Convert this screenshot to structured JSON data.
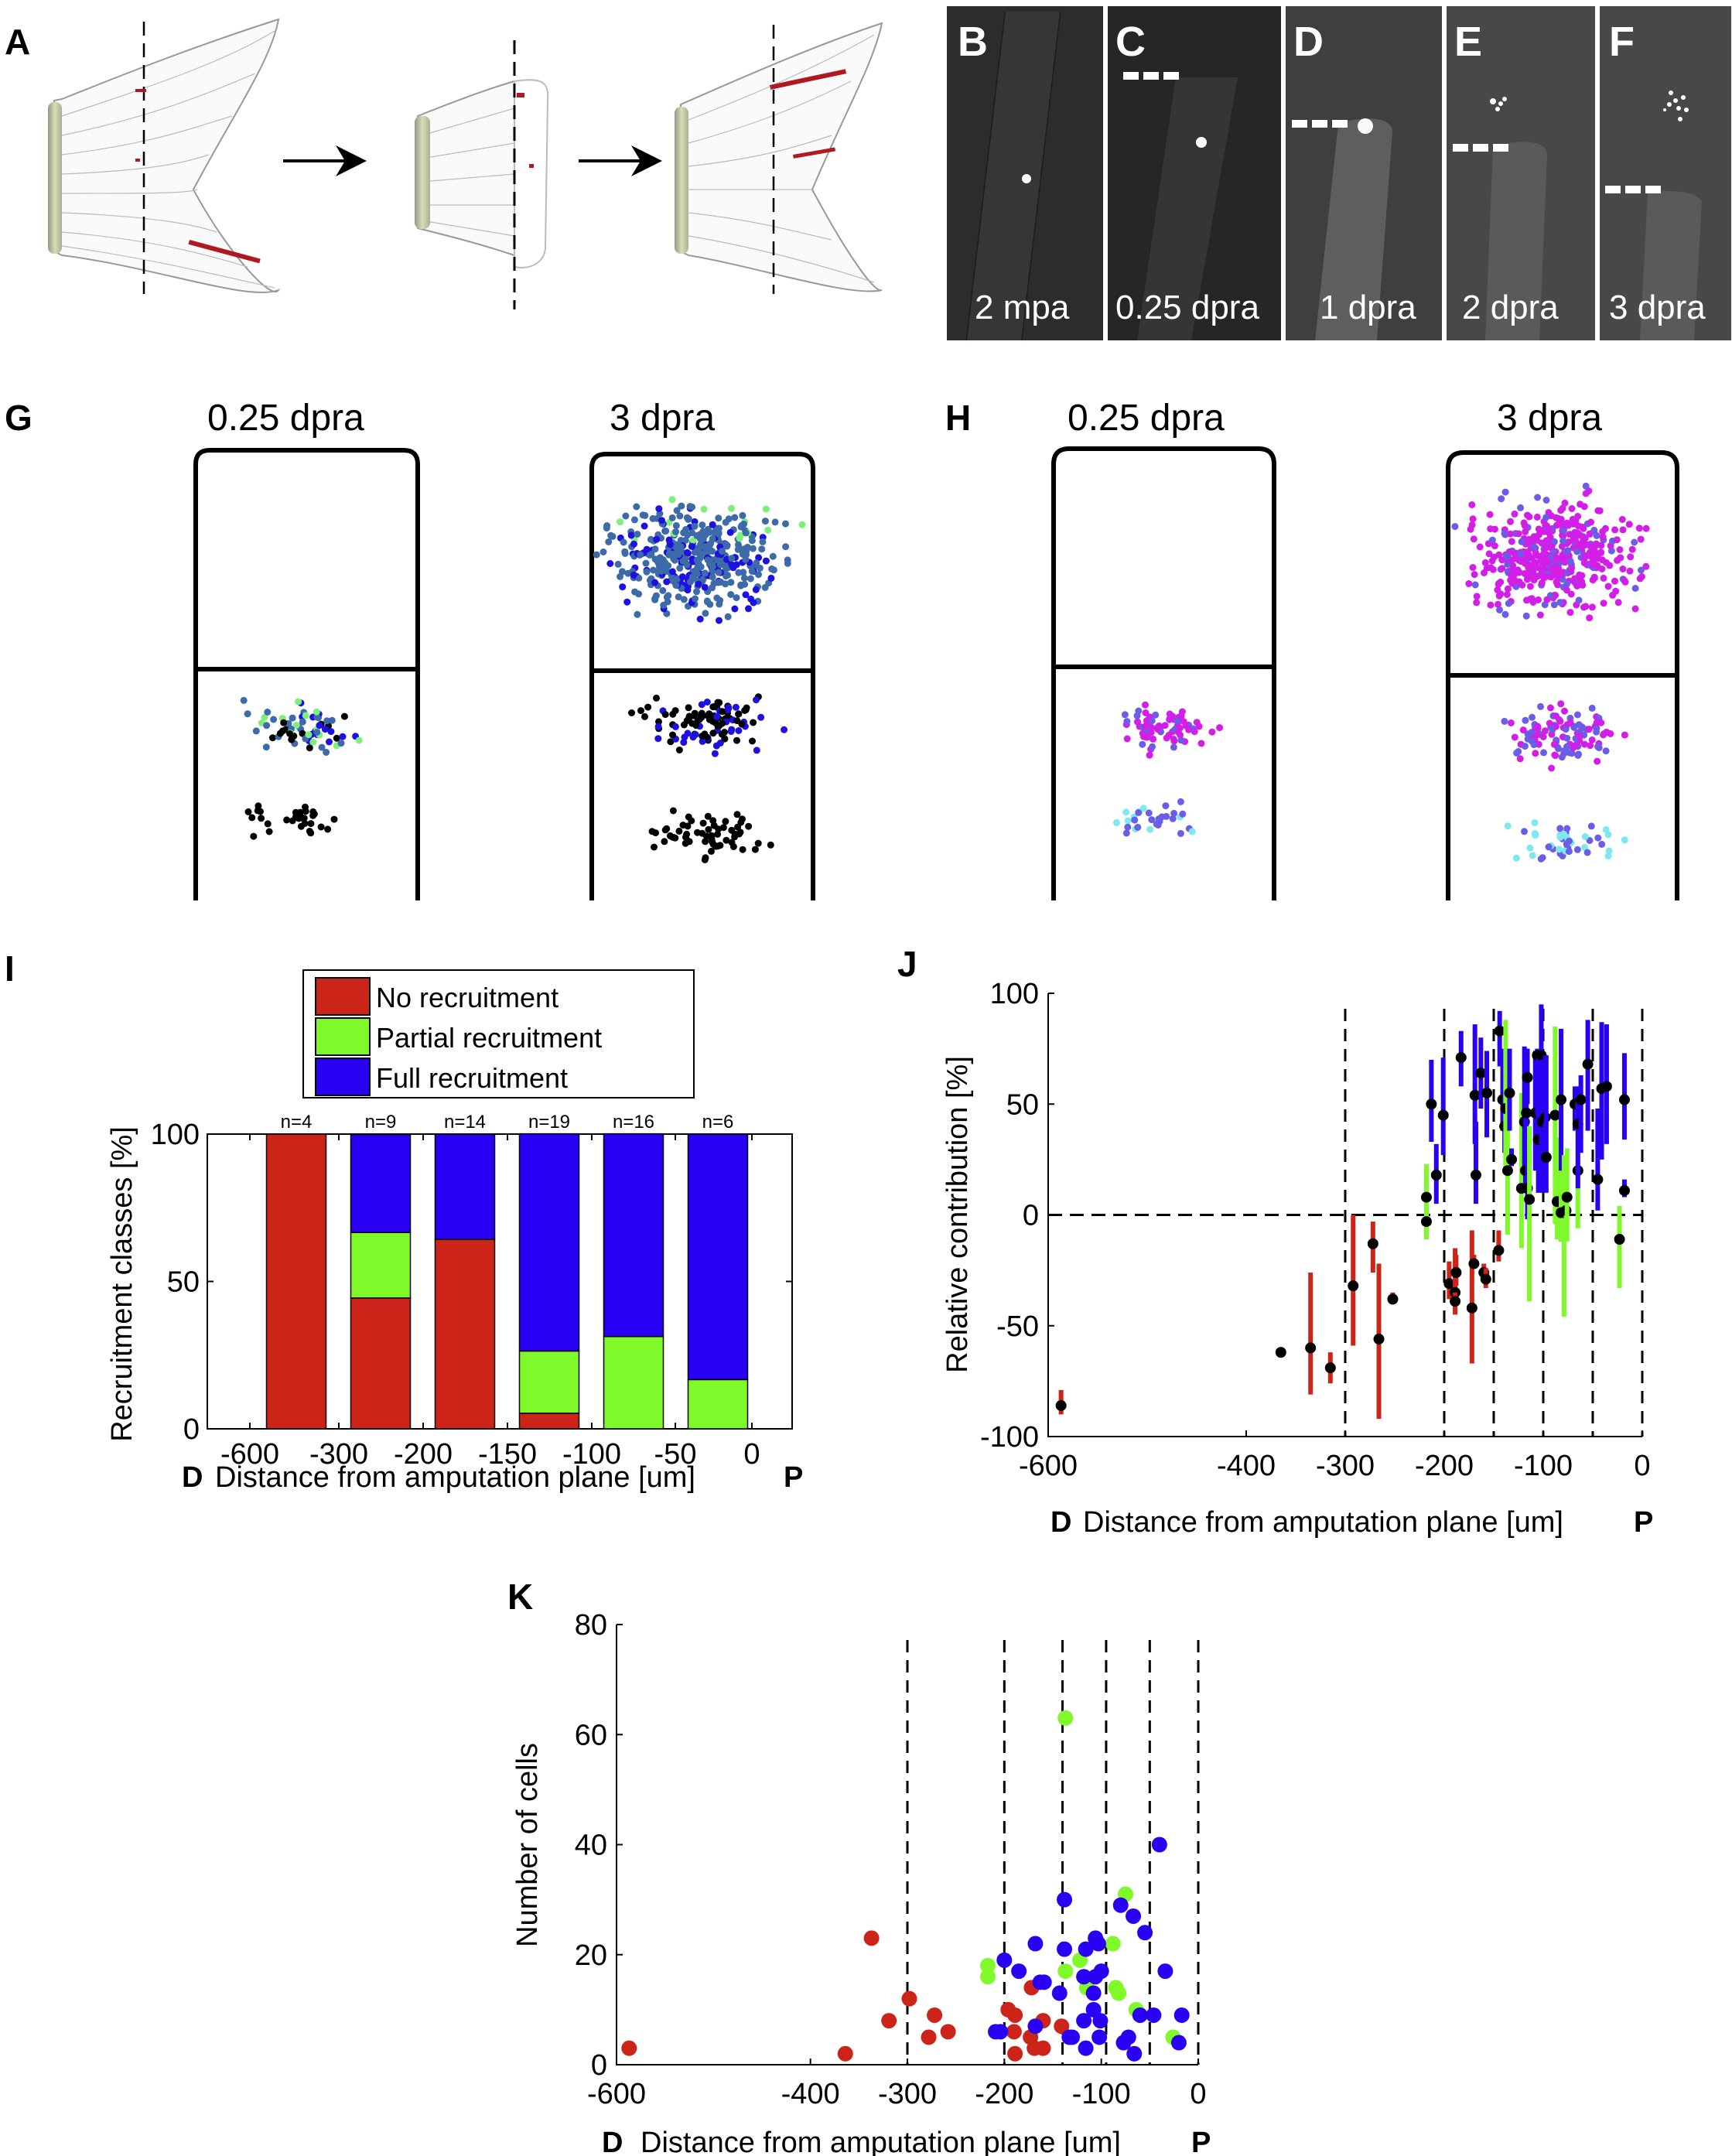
{
  "panels": {
    "A": {
      "label": "A"
    },
    "B": {
      "label": "B",
      "caption": "2 mpa"
    },
    "C": {
      "label": "C",
      "caption": "0.25 dpra"
    },
    "D": {
      "label": "D",
      "caption": "1 dpra"
    },
    "E": {
      "label": "E",
      "caption": "2 dpra"
    },
    "F": {
      "label": "F",
      "caption": "3 dpra"
    },
    "G": {
      "label": "G",
      "left_title": "0.25 dpra",
      "right_title": "3 dpra"
    },
    "H": {
      "label": "H",
      "left_title": "0.25 dpra",
      "right_title": "3 dpra"
    },
    "I": {
      "label": "I"
    },
    "J": {
      "label": "J"
    },
    "K": {
      "label": "K"
    }
  },
  "colors": {
    "no_recruitment": "#cc2418",
    "partial_recruitment": "#80f92a",
    "full_recruitment": "#2a00f2",
    "g_dark": "#000000",
    "g_blue": "#1d10e0",
    "g_steel": "#3d6aa8",
    "g_green": "#7cf07a",
    "h_magenta": "#d21ee6",
    "h_violet": "#6a5ee6",
    "h_cyan": "#7ee8f0",
    "micro_bg": "#3a3a3a"
  },
  "chart_data": [
    {
      "id": "I",
      "type": "bar",
      "stacked": true,
      "title": "",
      "xlabel": "Distance from amputation plane [um]",
      "xlabel_left": "D",
      "xlabel_right": "P",
      "ylabel": "Recruitment classes [%]",
      "ylim": [
        0,
        100
      ],
      "yticks": [
        0,
        50,
        100
      ],
      "xtick_labels": [
        "-600",
        "-300",
        "-200",
        "-150",
        "-100",
        "-50",
        "0"
      ],
      "categories": [
        "-600 to -300",
        "-300 to -200",
        "-200 to -150",
        "-150 to -100",
        "-100 to -50",
        "-50 to 0"
      ],
      "n_labels": [
        "n=4",
        "n=9",
        "n=14",
        "n=19",
        "n=16",
        "n=6"
      ],
      "legend": {
        "placement": "top",
        "entries": [
          "No recruitment",
          "Partial recruitment",
          "Full recruitment"
        ]
      },
      "series": [
        {
          "name": "No recruitment",
          "values": [
            100,
            44.4,
            64.3,
            5.3,
            0,
            0
          ]
        },
        {
          "name": "Partial recruitment",
          "values": [
            0,
            22.2,
            0,
            21.1,
            31.3,
            16.7
          ]
        },
        {
          "name": "Full recruitment",
          "values": [
            0,
            33.3,
            35.7,
            73.7,
            68.8,
            83.3
          ]
        }
      ]
    },
    {
      "id": "J",
      "type": "scatter",
      "title": "",
      "xlabel": "Distance from amputation plane [um]",
      "xlabel_left": "D",
      "xlabel_right": "P",
      "ylabel": "Relative contribution [%]",
      "xlim": [
        -600,
        0
      ],
      "ylim": [
        -100,
        100
      ],
      "xticks": [
        -600,
        -400,
        -300,
        -200,
        -100,
        0
      ],
      "yticks": [
        -100,
        -50,
        0,
        50,
        100
      ],
      "vlines": [
        -300,
        -200,
        -150,
        -100,
        -50,
        0
      ],
      "hline": 0,
      "error_bars": true,
      "points": [
        {
          "x": -587,
          "y": -86,
          "lo": -90,
          "hi": -79,
          "cls": "no"
        },
        {
          "x": -365,
          "y": -62,
          "lo": -62,
          "hi": -62,
          "cls": "no"
        },
        {
          "x": -335,
          "y": -60,
          "lo": -81,
          "hi": -26,
          "cls": "no"
        },
        {
          "x": -315,
          "y": -69,
          "lo": -76,
          "hi": -62,
          "cls": "no"
        },
        {
          "x": -292,
          "y": -32,
          "lo": -59,
          "hi": 0,
          "cls": "no"
        },
        {
          "x": -272,
          "y": -13,
          "lo": -26,
          "hi": -3,
          "cls": "no"
        },
        {
          "x": -266,
          "y": -56,
          "lo": -92,
          "hi": -22,
          "cls": "no"
        },
        {
          "x": -252,
          "y": -38,
          "lo": -40,
          "hi": -35,
          "cls": "no"
        },
        {
          "x": -218,
          "y": 8,
          "lo": -11,
          "hi": 23,
          "cls": "partial"
        },
        {
          "x": -218,
          "y": -3,
          "lo": -8,
          "hi": 2,
          "cls": "partial"
        },
        {
          "x": -213,
          "y": 50,
          "lo": 33,
          "hi": 70,
          "cls": "full"
        },
        {
          "x": -208,
          "y": 18,
          "lo": 5,
          "hi": 32,
          "cls": "full"
        },
        {
          "x": -201,
          "y": 45,
          "lo": 27,
          "hi": 71,
          "cls": "full"
        },
        {
          "x": -195,
          "y": -31,
          "lo": -38,
          "hi": -21,
          "cls": "no"
        },
        {
          "x": -189,
          "y": -35,
          "lo": -45,
          "hi": -15,
          "cls": "no"
        },
        {
          "x": -189,
          "y": -39,
          "lo": -43,
          "hi": -35,
          "cls": "no"
        },
        {
          "x": -188,
          "y": -26,
          "lo": -32,
          "hi": -18,
          "cls": "no"
        },
        {
          "x": -183,
          "y": 71,
          "lo": 58,
          "hi": 83,
          "cls": "full"
        },
        {
          "x": -172,
          "y": -42,
          "lo": -67,
          "hi": -7,
          "cls": "no"
        },
        {
          "x": -170,
          "y": -22,
          "lo": -24,
          "hi": -18,
          "cls": "no"
        },
        {
          "x": -169,
          "y": 54,
          "lo": 32,
          "hi": 86,
          "cls": "full"
        },
        {
          "x": -168,
          "y": 18,
          "lo": 5,
          "hi": 42,
          "cls": "full"
        },
        {
          "x": -163,
          "y": 64,
          "lo": 48,
          "hi": 80,
          "cls": "full"
        },
        {
          "x": -160,
          "y": -26,
          "lo": -29,
          "hi": -22,
          "cls": "no"
        },
        {
          "x": -158,
          "y": -29,
          "lo": -33,
          "hi": -24,
          "cls": "no"
        },
        {
          "x": -157,
          "y": 55,
          "lo": 35,
          "hi": 74,
          "cls": "full"
        },
        {
          "x": -145,
          "y": -16,
          "lo": -21,
          "hi": -7,
          "cls": "no"
        },
        {
          "x": -144,
          "y": 83,
          "lo": 67,
          "hi": 92,
          "cls": "full"
        },
        {
          "x": -141,
          "y": 52,
          "lo": 38,
          "hi": 75,
          "cls": "full"
        },
        {
          "x": -139,
          "y": 40,
          "lo": 28,
          "hi": 58,
          "cls": "full"
        },
        {
          "x": -138,
          "y": 48,
          "lo": 20,
          "hi": 88,
          "cls": "partial"
        },
        {
          "x": -136,
          "y": 20,
          "lo": -9,
          "hi": 58,
          "cls": "partial"
        },
        {
          "x": -134,
          "y": 55,
          "lo": 38,
          "hi": 75,
          "cls": "full"
        },
        {
          "x": -132,
          "y": 25,
          "lo": 22,
          "hi": 30,
          "cls": "full"
        },
        {
          "x": -122,
          "y": 12,
          "lo": -15,
          "hi": 55,
          "cls": "partial"
        },
        {
          "x": -119,
          "y": 42,
          "lo": 20,
          "hi": 76,
          "cls": "full"
        },
        {
          "x": -118,
          "y": 20,
          "lo": 10,
          "hi": 74,
          "cls": "full"
        },
        {
          "x": -117,
          "y": 46,
          "lo": 25,
          "hi": 75,
          "cls": "full"
        },
        {
          "x": -116,
          "y": 62,
          "lo": 50,
          "hi": 75,
          "cls": "full"
        },
        {
          "x": -116,
          "y": 12,
          "lo": -2,
          "hi": 26,
          "cls": "full"
        },
        {
          "x": -114,
          "y": 7,
          "lo": -39,
          "hi": 40,
          "cls": "partial"
        },
        {
          "x": -108,
          "y": 46,
          "lo": 20,
          "hi": 74,
          "cls": "full"
        },
        {
          "x": -106,
          "y": 72,
          "lo": 45,
          "hi": 75,
          "cls": "full"
        },
        {
          "x": -105,
          "y": 34,
          "lo": 10,
          "hi": 72,
          "cls": "full"
        },
        {
          "x": -102,
          "y": 72,
          "lo": 32,
          "hi": 95,
          "cls": "full"
        },
        {
          "x": -101,
          "y": 42,
          "lo": 10,
          "hi": 70,
          "cls": "full"
        },
        {
          "x": -98,
          "y": 44,
          "lo": 20,
          "hi": 72,
          "cls": "full"
        },
        {
          "x": -97,
          "y": 26,
          "lo": 10,
          "hi": 72,
          "cls": "full"
        },
        {
          "x": -88,
          "y": 45,
          "lo": -4,
          "hi": 85,
          "cls": "partial"
        },
        {
          "x": -86,
          "y": 6,
          "lo": -11,
          "hi": 35,
          "cls": "partial"
        },
        {
          "x": -82,
          "y": 52,
          "lo": -12,
          "hi": 84,
          "cls": "full"
        },
        {
          "x": -82,
          "y": 1,
          "lo": -12,
          "hi": 20,
          "cls": "partial"
        },
        {
          "x": -79,
          "y": 1,
          "lo": -46,
          "hi": 27,
          "cls": "partial"
        },
        {
          "x": -77,
          "y": 2,
          "lo": -8,
          "hi": 22,
          "cls": "partial"
        },
        {
          "x": -76,
          "y": 8,
          "lo": -12,
          "hi": 30,
          "cls": "partial"
        },
        {
          "x": -68,
          "y": 50,
          "lo": 38,
          "hi": 58,
          "cls": "full"
        },
        {
          "x": -65,
          "y": 20,
          "lo": -6,
          "hi": 51,
          "cls": "partial"
        },
        {
          "x": -65,
          "y": 41,
          "lo": 12,
          "hi": 58,
          "cls": "full"
        },
        {
          "x": -62,
          "y": 52,
          "lo": 28,
          "hi": 63,
          "cls": "full"
        },
        {
          "x": -55,
          "y": 68,
          "lo": 38,
          "hi": 88,
          "cls": "full"
        },
        {
          "x": -45,
          "y": 16,
          "lo": 2,
          "hi": 48,
          "cls": "full"
        },
        {
          "x": -41,
          "y": 57,
          "lo": 25,
          "hi": 87,
          "cls": "full"
        },
        {
          "x": -36,
          "y": 58,
          "lo": 32,
          "hi": 86,
          "cls": "full"
        },
        {
          "x": -23,
          "y": -11,
          "lo": -33,
          "hi": 4,
          "cls": "partial"
        },
        {
          "x": -18,
          "y": 52,
          "lo": 34,
          "hi": 73,
          "cls": "full"
        },
        {
          "x": -18,
          "y": 11,
          "lo": 8,
          "hi": 16,
          "cls": "full"
        }
      ]
    },
    {
      "id": "K",
      "type": "scatter",
      "title": "",
      "xlabel": "Distance from amputation plane [um]",
      "xlabel_left": "D",
      "xlabel_right": "P",
      "ylabel": "Number of cells",
      "xlim": [
        -600,
        0
      ],
      "ylim": [
        0,
        80
      ],
      "xticks": [
        -600,
        -400,
        -300,
        -200,
        -100,
        0
      ],
      "yticks": [
        0,
        20,
        40,
        60,
        80
      ],
      "vlines": [
        -300,
        -200,
        -140,
        -95,
        -50,
        0
      ],
      "points": [
        {
          "x": -587,
          "y": 3,
          "cls": "no"
        },
        {
          "x": -364,
          "y": 2,
          "cls": "no"
        },
        {
          "x": -337,
          "y": 23,
          "cls": "no"
        },
        {
          "x": -319,
          "y": 8,
          "cls": "no"
        },
        {
          "x": -298,
          "y": 12,
          "cls": "no"
        },
        {
          "x": -278,
          "y": 5,
          "cls": "no"
        },
        {
          "x": -272,
          "y": 9,
          "cls": "no"
        },
        {
          "x": -258,
          "y": 6,
          "cls": "no"
        },
        {
          "x": -196,
          "y": 10,
          "cls": "no"
        },
        {
          "x": -189,
          "y": 9,
          "cls": "no"
        },
        {
          "x": -190,
          "y": 6,
          "cls": "no"
        },
        {
          "x": -189,
          "y": 2,
          "cls": "no"
        },
        {
          "x": -172,
          "y": 14,
          "cls": "no"
        },
        {
          "x": -173,
          "y": 5,
          "cls": "no"
        },
        {
          "x": -169,
          "y": 3,
          "cls": "no"
        },
        {
          "x": -160,
          "y": 8,
          "cls": "no"
        },
        {
          "x": -160,
          "y": 3,
          "cls": "no"
        },
        {
          "x": -141,
          "y": 7,
          "cls": "no"
        },
        {
          "x": -217,
          "y": 18,
          "cls": "partial"
        },
        {
          "x": -217,
          "y": 16,
          "cls": "partial"
        },
        {
          "x": -137,
          "y": 63,
          "cls": "partial"
        },
        {
          "x": -137,
          "y": 17,
          "cls": "partial"
        },
        {
          "x": -122,
          "y": 19,
          "cls": "partial"
        },
        {
          "x": -115,
          "y": 14,
          "cls": "partial"
        },
        {
          "x": -88,
          "y": 22,
          "cls": "partial"
        },
        {
          "x": -85,
          "y": 14,
          "cls": "partial"
        },
        {
          "x": -82,
          "y": 13,
          "cls": "partial"
        },
        {
          "x": -75,
          "y": 31,
          "cls": "partial"
        },
        {
          "x": -64,
          "y": 10,
          "cls": "partial"
        },
        {
          "x": -26,
          "y": 5,
          "cls": "partial"
        },
        {
          "x": -209,
          "y": 6,
          "cls": "full"
        },
        {
          "x": -204,
          "y": 6,
          "cls": "full"
        },
        {
          "x": -200,
          "y": 19,
          "cls": "full"
        },
        {
          "x": -185,
          "y": 17,
          "cls": "full"
        },
        {
          "x": -168,
          "y": 22,
          "cls": "full"
        },
        {
          "x": -168,
          "y": 7,
          "cls": "full"
        },
        {
          "x": -163,
          "y": 15,
          "cls": "full"
        },
        {
          "x": -159,
          "y": 15,
          "cls": "full"
        },
        {
          "x": -143,
          "y": 13,
          "cls": "full"
        },
        {
          "x": -138,
          "y": 30,
          "cls": "full"
        },
        {
          "x": -138,
          "y": 21,
          "cls": "full"
        },
        {
          "x": -133,
          "y": 5,
          "cls": "full"
        },
        {
          "x": -130,
          "y": 5,
          "cls": "full"
        },
        {
          "x": -118,
          "y": 16,
          "cls": "full"
        },
        {
          "x": -118,
          "y": 8,
          "cls": "full"
        },
        {
          "x": -116,
          "y": 21,
          "cls": "full"
        },
        {
          "x": -116,
          "y": 3,
          "cls": "full"
        },
        {
          "x": -108,
          "y": 13,
          "cls": "full"
        },
        {
          "x": -108,
          "y": 10,
          "cls": "full"
        },
        {
          "x": -106,
          "y": 23,
          "cls": "full"
        },
        {
          "x": -106,
          "y": 16,
          "cls": "full"
        },
        {
          "x": -103,
          "y": 22,
          "cls": "full"
        },
        {
          "x": -100,
          "y": 17,
          "cls": "full"
        },
        {
          "x": -101,
          "y": 8,
          "cls": "full"
        },
        {
          "x": -102,
          "y": 5,
          "cls": "full"
        },
        {
          "x": -80,
          "y": 29,
          "cls": "full"
        },
        {
          "x": -77,
          "y": 4,
          "cls": "full"
        },
        {
          "x": -72,
          "y": 5,
          "cls": "full"
        },
        {
          "x": -67,
          "y": 27,
          "cls": "full"
        },
        {
          "x": -66,
          "y": 2,
          "cls": "full"
        },
        {
          "x": -60,
          "y": 9,
          "cls": "full"
        },
        {
          "x": -55,
          "y": 24,
          "cls": "full"
        },
        {
          "x": -46,
          "y": 9,
          "cls": "full"
        },
        {
          "x": -40,
          "y": 40,
          "cls": "full"
        },
        {
          "x": -34,
          "y": 17,
          "cls": "full"
        },
        {
          "x": -20,
          "y": 4,
          "cls": "full"
        },
        {
          "x": -17,
          "y": 9,
          "cls": "full"
        }
      ]
    }
  ]
}
